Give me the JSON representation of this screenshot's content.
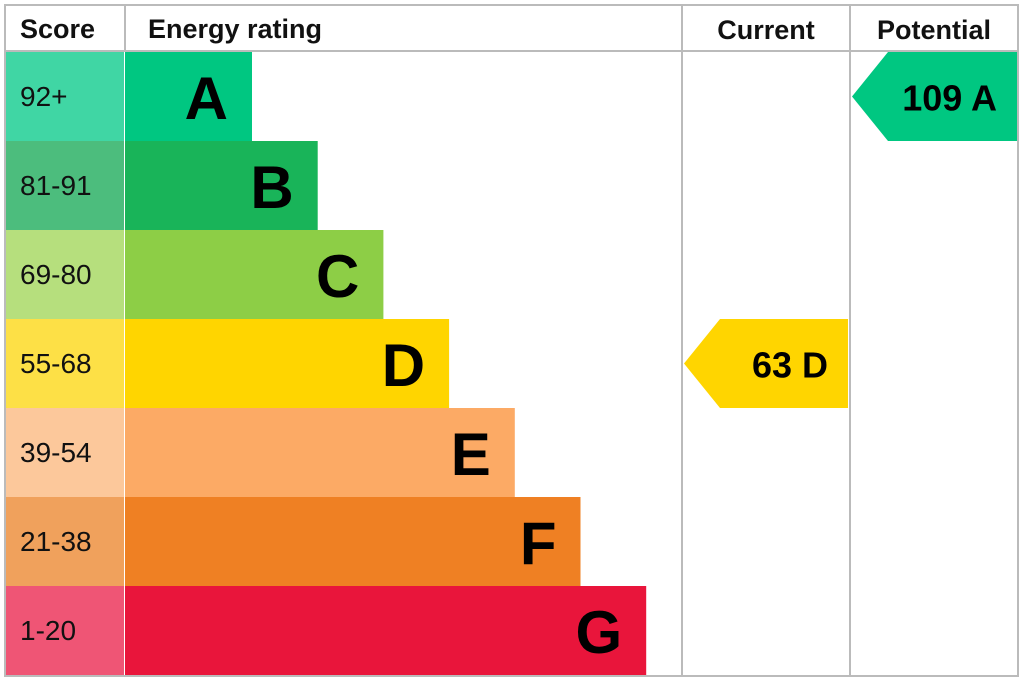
{
  "header": {
    "score": "Score",
    "rating": "Energy rating",
    "current": "Current",
    "potential": "Potential"
  },
  "bands": [
    {
      "range": "92+",
      "letter": "A",
      "cell_color": "#40d6a4",
      "bar_color": "#00c781"
    },
    {
      "range": "81-91",
      "letter": "B",
      "cell_color": "#4cbd7d",
      "bar_color": "#19b459"
    },
    {
      "range": "69-80",
      "letter": "C",
      "cell_color": "#b6df7d",
      "bar_color": "#8dce46"
    },
    {
      "range": "55-68",
      "letter": "D",
      "cell_color": "#fde046",
      "bar_color": "#ffd500"
    },
    {
      "range": "39-54",
      "letter": "E",
      "cell_color": "#fcc89b",
      "bar_color": "#fcaa65"
    },
    {
      "range": "21-38",
      "letter": "F",
      "cell_color": "#f0a15c",
      "bar_color": "#ef8023"
    },
    {
      "range": "1-20",
      "letter": "G",
      "cell_color": "#ef5575",
      "bar_color": "#e9153b"
    }
  ],
  "current": {
    "score": 63,
    "rating": "D"
  },
  "potential": {
    "score": 109,
    "rating": "A"
  }
}
